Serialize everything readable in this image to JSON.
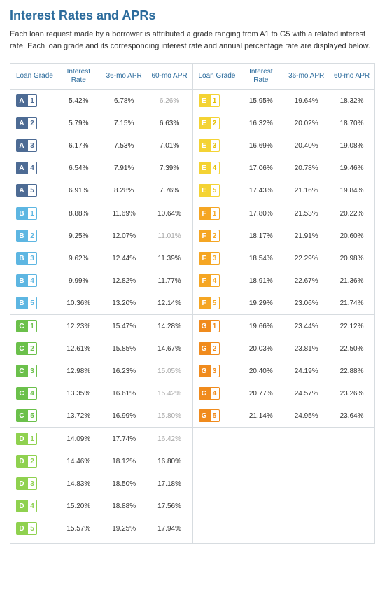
{
  "title": "Interest Rates and APRs",
  "intro": "Each loan request made by a borrower is attributed a grade ranging from A1 to G5 with a related interest rate. Each loan grade and its corresponding interest rate and annual percentage rate are displayed below.",
  "headers": {
    "grade": "Loan Grade",
    "rate": "Interest Rate",
    "apr36": "36-mo APR",
    "apr60": "60-mo APR"
  },
  "colors": {
    "title": "#2b6b9c",
    "border": "#d7dce0",
    "greyed": "#a7a7a7",
    "A": "#4d6b94",
    "B": "#5db6e2",
    "C": "#6bc04b",
    "D": "#8fd14f",
    "E": "#f4d334",
    "F": "#f5a623",
    "G": "#f08b1d"
  },
  "leftGroups": [
    {
      "letter": "A",
      "rows": [
        {
          "n": "1",
          "rate": "5.42%",
          "apr36": "6.78%",
          "apr60": "6.26%",
          "grey60": true
        },
        {
          "n": "2",
          "rate": "5.79%",
          "apr36": "7.15%",
          "apr60": "6.63%"
        },
        {
          "n": "3",
          "rate": "6.17%",
          "apr36": "7.53%",
          "apr60": "7.01%"
        },
        {
          "n": "4",
          "rate": "6.54%",
          "apr36": "7.91%",
          "apr60": "7.39%"
        },
        {
          "n": "5",
          "rate": "6.91%",
          "apr36": "8.28%",
          "apr60": "7.76%"
        }
      ]
    },
    {
      "letter": "B",
      "rows": [
        {
          "n": "1",
          "rate": "8.88%",
          "apr36": "11.69%",
          "apr60": "10.64%"
        },
        {
          "n": "2",
          "rate": "9.25%",
          "apr36": "12.07%",
          "apr60": "11.01%",
          "grey60": true
        },
        {
          "n": "3",
          "rate": "9.62%",
          "apr36": "12.44%",
          "apr60": "11.39%"
        },
        {
          "n": "4",
          "rate": "9.99%",
          "apr36": "12.82%",
          "apr60": "11.77%"
        },
        {
          "n": "5",
          "rate": "10.36%",
          "apr36": "13.20%",
          "apr60": "12.14%"
        }
      ]
    },
    {
      "letter": "C",
      "rows": [
        {
          "n": "1",
          "rate": "12.23%",
          "apr36": "15.47%",
          "apr60": "14.28%"
        },
        {
          "n": "2",
          "rate": "12.61%",
          "apr36": "15.85%",
          "apr60": "14.67%"
        },
        {
          "n": "3",
          "rate": "12.98%",
          "apr36": "16.23%",
          "apr60": "15.05%",
          "grey60": true
        },
        {
          "n": "4",
          "rate": "13.35%",
          "apr36": "16.61%",
          "apr60": "15.42%",
          "grey60": true
        },
        {
          "n": "5",
          "rate": "13.72%",
          "apr36": "16.99%",
          "apr60": "15.80%",
          "grey60": true
        }
      ]
    },
    {
      "letter": "D",
      "rows": [
        {
          "n": "1",
          "rate": "14.09%",
          "apr36": "17.74%",
          "apr60": "16.42%",
          "grey60": true
        },
        {
          "n": "2",
          "rate": "14.46%",
          "apr36": "18.12%",
          "apr60": "16.80%"
        },
        {
          "n": "3",
          "rate": "14.83%",
          "apr36": "18.50%",
          "apr60": "17.18%"
        },
        {
          "n": "4",
          "rate": "15.20%",
          "apr36": "18.88%",
          "apr60": "17.56%"
        },
        {
          "n": "5",
          "rate": "15.57%",
          "apr36": "19.25%",
          "apr60": "17.94%"
        }
      ]
    }
  ],
  "rightGroups": [
    {
      "letter": "E",
      "rows": [
        {
          "n": "1",
          "rate": "15.95%",
          "apr36": "19.64%",
          "apr60": "18.32%"
        },
        {
          "n": "2",
          "rate": "16.32%",
          "apr36": "20.02%",
          "apr60": "18.70%"
        },
        {
          "n": "3",
          "rate": "16.69%",
          "apr36": "20.40%",
          "apr60": "19.08%"
        },
        {
          "n": "4",
          "rate": "17.06%",
          "apr36": "20.78%",
          "apr60": "19.46%"
        },
        {
          "n": "5",
          "rate": "17.43%",
          "apr36": "21.16%",
          "apr60": "19.84%"
        }
      ]
    },
    {
      "letter": "F",
      "rows": [
        {
          "n": "1",
          "rate": "17.80%",
          "apr36": "21.53%",
          "apr60": "20.22%"
        },
        {
          "n": "2",
          "rate": "18.17%",
          "apr36": "21.91%",
          "apr60": "20.60%"
        },
        {
          "n": "3",
          "rate": "18.54%",
          "apr36": "22.29%",
          "apr60": "20.98%"
        },
        {
          "n": "4",
          "rate": "18.91%",
          "apr36": "22.67%",
          "apr60": "21.36%"
        },
        {
          "n": "5",
          "rate": "19.29%",
          "apr36": "23.06%",
          "apr60": "21.74%"
        }
      ]
    },
    {
      "letter": "G",
      "rows": [
        {
          "n": "1",
          "rate": "19.66%",
          "apr36": "23.44%",
          "apr60": "22.12%"
        },
        {
          "n": "2",
          "rate": "20.03%",
          "apr36": "23.81%",
          "apr60": "22.50%"
        },
        {
          "n": "3",
          "rate": "20.40%",
          "apr36": "24.19%",
          "apr60": "22.88%"
        },
        {
          "n": "4",
          "rate": "20.77%",
          "apr36": "24.57%",
          "apr60": "23.26%"
        },
        {
          "n": "5",
          "rate": "21.14%",
          "apr36": "24.95%",
          "apr60": "23.64%"
        }
      ]
    },
    {
      "letter": "",
      "rows": [
        {
          "empty": true
        },
        {
          "empty": true
        },
        {
          "empty": true
        },
        {
          "empty": true
        },
        {
          "empty": true
        }
      ]
    }
  ]
}
